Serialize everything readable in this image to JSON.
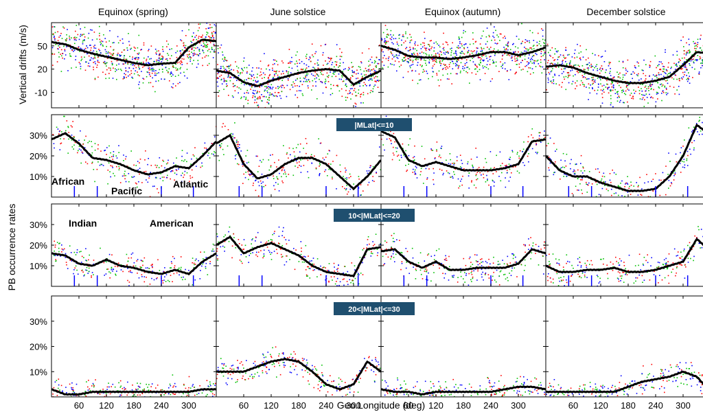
{
  "columns": [
    "Equinox (spring)",
    "June solstice",
    "Equinox (autumn)",
    "December solstice"
  ],
  "xlabel": "Geo.Longitude (deg)",
  "ylabel_drift": "Vertical drifts (m/s)",
  "ylabel_pb": "PB occurrence rates",
  "colors": {
    "scatter": [
      "#ff0000",
      "#00c000",
      "#0000ff"
    ],
    "mean": "#000000",
    "marker": "#0000ff",
    "badge_bg": "#1f4f6f"
  },
  "xaxis": {
    "range": [
      0,
      360
    ],
    "ticks": [
      60,
      120,
      180,
      240,
      300
    ],
    "tick_labels": [
      "60",
      "120",
      "180",
      "240",
      "300"
    ]
  },
  "region_labels": {
    "african": "African",
    "pacific": "Pacific",
    "atlantic": "Atlantic",
    "indian": "Indian",
    "american": "American"
  },
  "chart_data": [
    {
      "type": "scatter",
      "row": "drift",
      "ylabel": "Vertical drifts (m/s)",
      "ylim": [
        -30,
        80
      ],
      "yticks": [
        50,
        20,
        -10
      ],
      "ytick_labels": [
        "50",
        "20",
        "-10"
      ],
      "spread": 22,
      "x": [
        0,
        30,
        60,
        90,
        120,
        150,
        180,
        210,
        240,
        270,
        300,
        330,
        360
      ],
      "series": [
        {
          "column": "Equinox (spring)",
          "mean": [
            55,
            52,
            45,
            40,
            36,
            32,
            28,
            25,
            27,
            28,
            48,
            58,
            56
          ]
        },
        {
          "column": "June solstice",
          "mean": [
            18,
            15,
            3,
            -2,
            5,
            10,
            15,
            18,
            20,
            18,
            0,
            10,
            18
          ]
        },
        {
          "column": "Equinox (autumn)",
          "mean": [
            50,
            45,
            37,
            35,
            35,
            33,
            35,
            38,
            42,
            42,
            38,
            42,
            48
          ]
        },
        {
          "column": "December solstice",
          "mean": [
            23,
            25,
            22,
            15,
            10,
            5,
            2,
            2,
            5,
            10,
            25,
            42,
            40
          ]
        }
      ]
    },
    {
      "type": "scatter",
      "row": "pb_low",
      "badge": "|MLat|<=10",
      "ylim": [
        0,
        40
      ],
      "yticks": [
        30,
        20,
        10
      ],
      "ytick_labels": [
        "30%",
        "20%",
        "10%"
      ],
      "spread": 7,
      "markers": [
        50,
        100,
        240,
        310
      ],
      "x": [
        0,
        30,
        60,
        90,
        120,
        150,
        180,
        210,
        240,
        270,
        300,
        330,
        360
      ],
      "series": [
        {
          "column": "Equinox (spring)",
          "mean": [
            28,
            31,
            26,
            19,
            18,
            16,
            13,
            11,
            12,
            15,
            14,
            20,
            27
          ]
        },
        {
          "column": "June solstice",
          "mean": [
            26,
            30,
            16,
            9,
            11,
            16,
            19,
            19,
            16,
            10,
            4,
            10,
            18
          ]
        },
        {
          "column": "Equinox (autumn)",
          "mean": [
            32,
            29,
            18,
            15,
            17,
            15,
            13,
            13,
            13,
            14,
            16,
            27,
            28
          ]
        },
        {
          "column": "December solstice",
          "mean": [
            20,
            13,
            10,
            10,
            7,
            5,
            3,
            3,
            4,
            10,
            20,
            35,
            30
          ]
        }
      ]
    },
    {
      "type": "scatter",
      "row": "pb_mid",
      "badge": "10<|MLat|<=20",
      "ylim": [
        0,
        40
      ],
      "yticks": [
        30,
        20,
        10
      ],
      "ytick_labels": [
        "30%",
        "20%",
        "10%"
      ],
      "spread": 6,
      "markers": [
        50,
        100,
        240,
        310
      ],
      "x": [
        0,
        30,
        60,
        90,
        120,
        150,
        180,
        210,
        240,
        270,
        300,
        330,
        360
      ],
      "series": [
        {
          "column": "Equinox (spring)",
          "mean": [
            16,
            15,
            11,
            10,
            13,
            10,
            9,
            7,
            6,
            8,
            6,
            12,
            16
          ]
        },
        {
          "column": "June solstice",
          "mean": [
            20,
            24,
            16,
            19,
            21,
            18,
            15,
            10,
            7,
            6,
            5,
            18,
            19
          ]
        },
        {
          "column": "Equinox (autumn)",
          "mean": [
            17,
            18,
            12,
            9,
            12,
            8,
            8,
            9,
            9,
            9,
            11,
            18,
            16
          ]
        },
        {
          "column": "December solstice",
          "mean": [
            10,
            7,
            7,
            8,
            8,
            9,
            7,
            7,
            8,
            10,
            12,
            23,
            17
          ]
        }
      ]
    },
    {
      "type": "scatter",
      "row": "pb_high",
      "badge": "20<|MLat|<=30",
      "ylim": [
        0,
        40
      ],
      "yticks": [
        30,
        20,
        10
      ],
      "ytick_labels": [
        "30%",
        "20%",
        "10%"
      ],
      "spread": 4,
      "x": [
        0,
        30,
        60,
        90,
        120,
        150,
        180,
        210,
        240,
        270,
        300,
        330,
        360
      ],
      "series": [
        {
          "column": "Equinox (spring)",
          "mean": [
            3,
            1,
            1,
            2,
            2,
            2,
            2,
            2,
            2,
            2,
            2,
            3,
            3
          ]
        },
        {
          "column": "June solstice",
          "mean": [
            10,
            10,
            10,
            12,
            14,
            15,
            14,
            10,
            5,
            3,
            5,
            14,
            10
          ]
        },
        {
          "column": "Equinox (autumn)",
          "mean": [
            3,
            2,
            2,
            1,
            2,
            2,
            2,
            2,
            2,
            3,
            4,
            4,
            3
          ]
        },
        {
          "column": "December solstice",
          "mean": [
            2,
            2,
            2,
            2,
            2,
            2,
            4,
            6,
            7,
            8,
            10,
            8,
            2
          ]
        }
      ]
    }
  ]
}
